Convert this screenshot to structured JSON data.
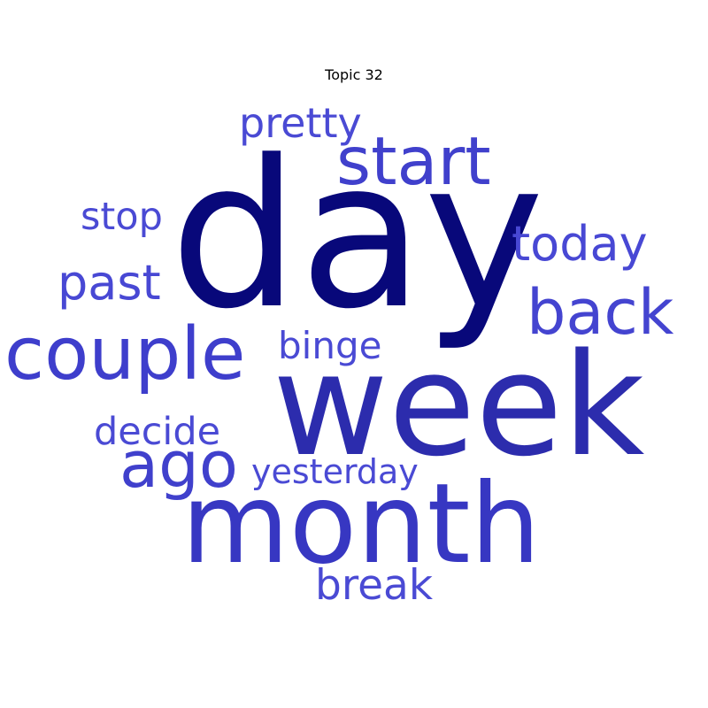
{
  "chart_data": {
    "type": "wordcloud",
    "title": "Topic 32",
    "words": [
      {
        "text": "day",
        "weight": 1.0,
        "color": "#08087a"
      },
      {
        "text": "week",
        "weight": 0.8,
        "color": "#2c2cad"
      },
      {
        "text": "month",
        "weight": 0.7,
        "color": "#3737c2"
      },
      {
        "text": "start",
        "weight": 0.5,
        "color": "#4040cc"
      },
      {
        "text": "couple",
        "weight": 0.54,
        "color": "#3e3ecc"
      },
      {
        "text": "ago",
        "weight": 0.5,
        "color": "#4040cc"
      },
      {
        "text": "back",
        "weight": 0.47,
        "color": "#4444d0"
      },
      {
        "text": "today",
        "weight": 0.36,
        "color": "#4848d4"
      },
      {
        "text": "past",
        "weight": 0.36,
        "color": "#4848d4"
      },
      {
        "text": "pretty",
        "weight": 0.31,
        "color": "#4a4ad4"
      },
      {
        "text": "break",
        "weight": 0.32,
        "color": "#4a4ad4"
      },
      {
        "text": "stop",
        "weight": 0.3,
        "color": "#4a4ad4"
      },
      {
        "text": "decide",
        "weight": 0.3,
        "color": "#4a4ad4"
      },
      {
        "text": "binge",
        "weight": 0.29,
        "color": "#4a4ad4"
      },
      {
        "text": "yesterday",
        "weight": 0.27,
        "color": "#4a4ad4"
      }
    ]
  }
}
